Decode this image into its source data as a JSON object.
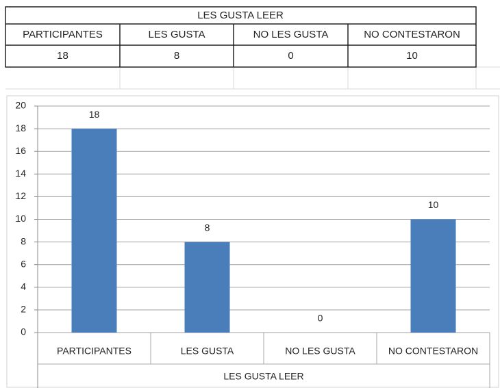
{
  "table": {
    "title": "LES GUSTA LEER",
    "headers": [
      "PARTICIPANTES",
      "LES GUSTA",
      "NO LES GUSTA",
      "NO CONTESTARON"
    ],
    "row": [
      "18",
      "8",
      "0",
      "10"
    ]
  },
  "chart_data": {
    "type": "bar",
    "x_label": "LES GUSTA LEER",
    "categories": [
      "PARTICIPANTES",
      "LES GUSTA",
      "NO LES GUSTA",
      "NO CONTESTARON"
    ],
    "values": [
      18,
      8,
      0,
      10
    ],
    "color": "#4a7ebb",
    "ylim": [
      0,
      20
    ],
    "yticks": [
      0,
      2,
      4,
      6,
      8,
      10,
      12,
      14,
      16,
      18,
      20
    ],
    "grid": true,
    "data_labels": true
  }
}
